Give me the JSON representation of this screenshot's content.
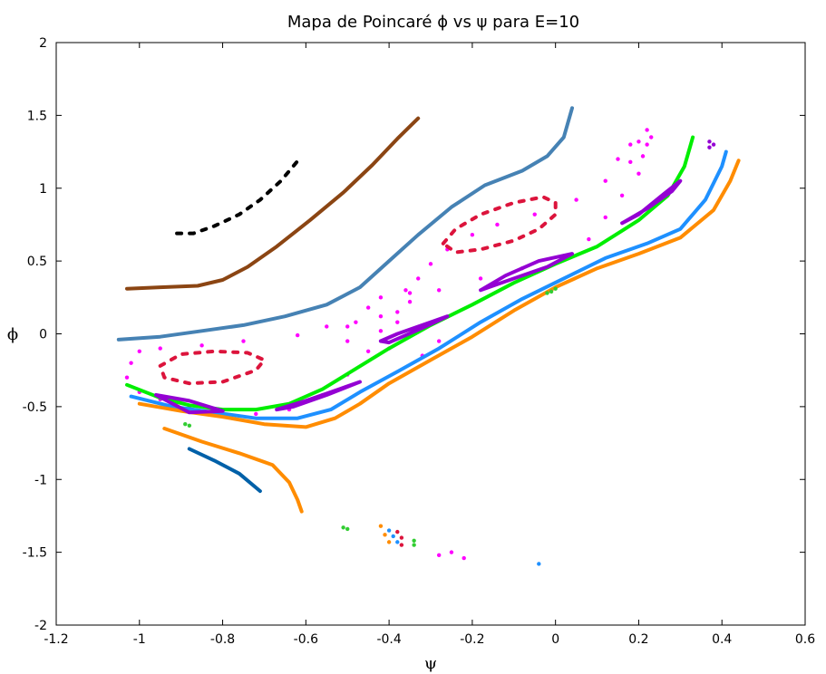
{
  "chart_data": {
    "type": "scatter",
    "title": "Mapa de Poincaré ϕ vs ψ para E=10",
    "xlabel": "ψ",
    "ylabel": "ϕ",
    "xlim": [
      -1.2,
      0.6
    ],
    "ylim": [
      -2,
      2
    ],
    "xticks": [
      -1.2,
      -1,
      -0.8,
      -0.6,
      -0.4,
      -0.2,
      0,
      0.2,
      0.4,
      0.6
    ],
    "xtick_labels": [
      "-1.2",
      "-1",
      "-0.8",
      "-0.6",
      "-0.4",
      "-0.2",
      "0",
      "0.2",
      "0.4",
      "0.6"
    ],
    "yticks": [
      -2,
      -1.5,
      -1,
      -0.5,
      0,
      0.5,
      1,
      1.5,
      2
    ],
    "ytick_labels": [
      "-2",
      "-1.5",
      "-1",
      "-0.5",
      "0",
      "0.5",
      "1",
      "1.5",
      "2"
    ],
    "grid": false,
    "legend": "none",
    "series": [
      {
        "color": "#000000",
        "kind": "dashed",
        "points": [
          [
            -0.91,
            0.69
          ],
          [
            -0.87,
            0.69
          ],
          [
            -0.82,
            0.74
          ],
          [
            -0.76,
            0.82
          ],
          [
            -0.71,
            0.92
          ],
          [
            -0.66,
            1.05
          ],
          [
            -0.61,
            1.22
          ]
        ]
      },
      {
        "color": "#8b4513",
        "kind": "line",
        "points": [
          [
            -1.03,
            0.31
          ],
          [
            -0.95,
            0.32
          ],
          [
            -0.86,
            0.33
          ],
          [
            -0.8,
            0.37
          ],
          [
            -0.74,
            0.46
          ],
          [
            -0.67,
            0.6
          ],
          [
            -0.59,
            0.78
          ],
          [
            -0.51,
            0.97
          ],
          [
            -0.44,
            1.16
          ],
          [
            -0.38,
            1.34
          ],
          [
            -0.33,
            1.48
          ]
        ]
      },
      {
        "color": "#4682b4",
        "kind": "line",
        "points": [
          [
            -1.05,
            -0.04
          ],
          [
            -0.95,
            -0.02
          ],
          [
            -0.85,
            0.02
          ],
          [
            -0.75,
            0.06
          ],
          [
            -0.65,
            0.12
          ],
          [
            -0.55,
            0.2
          ],
          [
            -0.47,
            0.32
          ],
          [
            -0.4,
            0.5
          ],
          [
            -0.33,
            0.68
          ],
          [
            -0.25,
            0.87
          ],
          [
            -0.17,
            1.02
          ],
          [
            -0.08,
            1.12
          ],
          [
            -0.02,
            1.22
          ],
          [
            0.02,
            1.35
          ],
          [
            0.04,
            1.55
          ]
        ]
      },
      {
        "color": "#ff00ff",
        "kind": "dots",
        "points": [
          [
            -1.02,
            -0.2
          ],
          [
            -1.03,
            -0.3
          ],
          [
            -1.0,
            -0.4
          ],
          [
            -0.95,
            -0.45
          ],
          [
            -0.88,
            -0.5
          ],
          [
            -0.8,
            -0.53
          ],
          [
            -0.72,
            -0.55
          ],
          [
            -0.64,
            -0.52
          ],
          [
            -0.56,
            -0.42
          ],
          [
            -0.5,
            -0.28
          ],
          [
            -0.45,
            -0.12
          ],
          [
            -0.42,
            0.02
          ],
          [
            -0.38,
            0.15
          ],
          [
            -0.35,
            0.28
          ],
          [
            -0.33,
            0.38
          ],
          [
            -0.3,
            0.48
          ],
          [
            -0.26,
            0.58
          ],
          [
            -0.2,
            0.68
          ],
          [
            -0.14,
            0.75
          ],
          [
            -0.05,
            0.82
          ],
          [
            0.05,
            0.92
          ],
          [
            0.12,
            1.05
          ],
          [
            0.18,
            1.18
          ],
          [
            0.22,
            1.3
          ],
          [
            0.23,
            1.35
          ],
          [
            -1.0,
            -0.12
          ],
          [
            -0.95,
            -0.1
          ],
          [
            -0.85,
            -0.08
          ],
          [
            -0.75,
            -0.05
          ],
          [
            -0.62,
            -0.01
          ],
          [
            -0.5,
            0.05
          ],
          [
            -0.42,
            0.12
          ],
          [
            -0.35,
            0.22
          ],
          [
            -0.28,
            0.3
          ],
          [
            -0.18,
            0.38
          ],
          [
            -0.08,
            0.45
          ],
          [
            0.02,
            0.52
          ],
          [
            0.08,
            0.65
          ],
          [
            0.12,
            0.8
          ],
          [
            0.16,
            0.95
          ],
          [
            0.2,
            1.1
          ],
          [
            0.21,
            1.22
          ],
          [
            -0.55,
            0.05
          ],
          [
            -0.5,
            -0.05
          ],
          [
            -0.48,
            0.08
          ],
          [
            -0.38,
            0.08
          ],
          [
            -0.35,
            0.0
          ],
          [
            -0.4,
            -0.1
          ],
          [
            -0.32,
            -0.15
          ],
          [
            -0.28,
            -0.05
          ],
          [
            -0.45,
            0.18
          ],
          [
            -0.42,
            0.25
          ],
          [
            -0.36,
            0.3
          ],
          [
            0.15,
            1.2
          ],
          [
            0.2,
            1.32
          ],
          [
            0.22,
            1.4
          ],
          [
            0.18,
            1.3
          ],
          [
            -0.28,
            -1.52
          ],
          [
            -0.25,
            -1.5
          ],
          [
            -0.22,
            -1.54
          ]
        ]
      },
      {
        "color": "#dc143c",
        "kind": "dashed-loop",
        "points": [
          [
            -0.95,
            -0.22
          ],
          [
            -0.9,
            -0.14
          ],
          [
            -0.82,
            -0.12
          ],
          [
            -0.74,
            -0.13
          ],
          [
            -0.7,
            -0.18
          ],
          [
            -0.72,
            -0.25
          ],
          [
            -0.8,
            -0.33
          ],
          [
            -0.88,
            -0.34
          ],
          [
            -0.94,
            -0.3
          ],
          [
            -0.95,
            -0.22
          ]
        ]
      },
      {
        "color": "#dc143c",
        "kind": "dashed-loop",
        "points": [
          [
            -0.27,
            0.62
          ],
          [
            -0.24,
            0.72
          ],
          [
            -0.18,
            0.82
          ],
          [
            -0.1,
            0.9
          ],
          [
            -0.03,
            0.94
          ],
          [
            0.0,
            0.9
          ],
          [
            0.0,
            0.82
          ],
          [
            -0.04,
            0.72
          ],
          [
            -0.1,
            0.64
          ],
          [
            -0.18,
            0.58
          ],
          [
            -0.24,
            0.56
          ],
          [
            -0.27,
            0.62
          ]
        ]
      },
      {
        "color": "#00ee00",
        "kind": "line",
        "points": [
          [
            -1.03,
            -0.35
          ],
          [
            -0.95,
            -0.44
          ],
          [
            -0.88,
            -0.49
          ],
          [
            -0.8,
            -0.52
          ],
          [
            -0.72,
            -0.52
          ],
          [
            -0.64,
            -0.48
          ],
          [
            -0.56,
            -0.38
          ],
          [
            -0.48,
            -0.24
          ],
          [
            -0.4,
            -0.1
          ],
          [
            -0.3,
            0.06
          ],
          [
            -0.2,
            0.2
          ],
          [
            -0.1,
            0.35
          ],
          [
            0.0,
            0.48
          ],
          [
            0.1,
            0.6
          ],
          [
            0.2,
            0.78
          ],
          [
            0.27,
            0.95
          ],
          [
            0.31,
            1.15
          ],
          [
            0.33,
            1.35
          ]
        ]
      },
      {
        "color": "#1e90ff",
        "kind": "line",
        "points": [
          [
            -1.02,
            -0.43
          ],
          [
            -0.92,
            -0.5
          ],
          [
            -0.82,
            -0.54
          ],
          [
            -0.72,
            -0.58
          ],
          [
            -0.62,
            -0.58
          ],
          [
            -0.54,
            -0.52
          ],
          [
            -0.47,
            -0.4
          ],
          [
            -0.38,
            -0.26
          ],
          [
            -0.28,
            -0.1
          ],
          [
            -0.18,
            0.08
          ],
          [
            -0.08,
            0.24
          ],
          [
            0.02,
            0.38
          ],
          [
            0.12,
            0.52
          ],
          [
            0.22,
            0.62
          ],
          [
            0.3,
            0.72
          ],
          [
            0.36,
            0.92
          ],
          [
            0.4,
            1.15
          ],
          [
            0.41,
            1.25
          ]
        ]
      },
      {
        "color": "#ff8c00",
        "kind": "line",
        "points": [
          [
            -1.0,
            -0.48
          ],
          [
            -0.9,
            -0.53
          ],
          [
            -0.8,
            -0.57
          ],
          [
            -0.7,
            -0.62
          ],
          [
            -0.6,
            -0.64
          ],
          [
            -0.53,
            -0.58
          ],
          [
            -0.47,
            -0.48
          ],
          [
            -0.4,
            -0.34
          ],
          [
            -0.3,
            -0.18
          ],
          [
            -0.2,
            -0.02
          ],
          [
            -0.1,
            0.16
          ],
          [
            0.0,
            0.32
          ],
          [
            0.1,
            0.45
          ],
          [
            0.2,
            0.55
          ],
          [
            0.3,
            0.66
          ],
          [
            0.38,
            0.85
          ],
          [
            0.42,
            1.05
          ],
          [
            0.44,
            1.19
          ]
        ]
      },
      {
        "color": "#ff8c00",
        "kind": "line",
        "points": [
          [
            -0.94,
            -0.65
          ],
          [
            -0.85,
            -0.74
          ],
          [
            -0.76,
            -0.82
          ],
          [
            -0.68,
            -0.9
          ],
          [
            -0.64,
            -1.02
          ],
          [
            -0.62,
            -1.14
          ],
          [
            -0.61,
            -1.22
          ]
        ]
      },
      {
        "color": "#0060a8",
        "kind": "line",
        "points": [
          [
            -0.88,
            -0.79
          ],
          [
            -0.82,
            -0.87
          ],
          [
            -0.76,
            -0.96
          ],
          [
            -0.71,
            -1.08
          ]
        ]
      },
      {
        "color": "#9400d3",
        "kind": "loop",
        "points": [
          [
            -0.96,
            -0.42
          ],
          [
            -0.88,
            -0.46
          ],
          [
            -0.8,
            -0.53
          ],
          [
            -0.88,
            -0.54
          ],
          [
            -0.96,
            -0.42
          ]
        ]
      },
      {
        "color": "#9400d3",
        "kind": "loop",
        "points": [
          [
            -0.67,
            -0.52
          ],
          [
            -0.6,
            -0.46
          ],
          [
            -0.52,
            -0.38
          ],
          [
            -0.47,
            -0.33
          ],
          [
            -0.55,
            -0.42
          ],
          [
            -0.63,
            -0.5
          ],
          [
            -0.67,
            -0.52
          ]
        ]
      },
      {
        "color": "#9400d3",
        "kind": "loop",
        "points": [
          [
            -0.42,
            -0.05
          ],
          [
            -0.38,
            0.0
          ],
          [
            -0.3,
            0.08
          ],
          [
            -0.26,
            0.12
          ],
          [
            -0.32,
            0.04
          ],
          [
            -0.4,
            -0.06
          ],
          [
            -0.42,
            -0.05
          ]
        ]
      },
      {
        "color": "#9400d3",
        "kind": "loop",
        "points": [
          [
            -0.18,
            0.3
          ],
          [
            -0.1,
            0.38
          ],
          [
            -0.02,
            0.46
          ],
          [
            0.04,
            0.55
          ],
          [
            -0.04,
            0.5
          ],
          [
            -0.12,
            0.4
          ],
          [
            -0.18,
            0.3
          ]
        ]
      },
      {
        "color": "#9400d3",
        "kind": "loop",
        "points": [
          [
            0.16,
            0.76
          ],
          [
            0.22,
            0.86
          ],
          [
            0.28,
            0.98
          ],
          [
            0.3,
            1.05
          ],
          [
            0.26,
            0.96
          ],
          [
            0.2,
            0.82
          ],
          [
            0.16,
            0.76
          ]
        ]
      },
      {
        "color": "#9400d3",
        "kind": "dots",
        "points": [
          [
            0.37,
            1.32
          ],
          [
            0.37,
            1.28
          ],
          [
            0.38,
            1.3
          ]
        ]
      },
      {
        "color": "#32cd32",
        "kind": "dots",
        "points": [
          [
            -0.01,
            0.29
          ],
          [
            0.0,
            0.31
          ],
          [
            -0.02,
            0.28
          ],
          [
            -0.89,
            -0.62
          ],
          [
            -0.88,
            -0.63
          ],
          [
            -0.51,
            -1.33
          ],
          [
            -0.5,
            -1.34
          ],
          [
            -0.34,
            -1.42
          ],
          [
            -0.34,
            -1.45
          ]
        ]
      },
      {
        "color": "#ff8c00",
        "kind": "dots",
        "points": [
          [
            -0.42,
            -1.32
          ],
          [
            -0.41,
            -1.38
          ],
          [
            -0.4,
            -1.43
          ]
        ]
      },
      {
        "color": "#1e90ff",
        "kind": "dots",
        "points": [
          [
            -0.4,
            -1.35
          ],
          [
            -0.39,
            -1.39
          ],
          [
            -0.38,
            -1.43
          ],
          [
            -0.04,
            -1.58
          ]
        ]
      },
      {
        "color": "#dc143c",
        "kind": "dots",
        "points": [
          [
            -0.38,
            -1.36
          ],
          [
            -0.37,
            -1.4
          ],
          [
            -0.37,
            -1.45
          ]
        ]
      }
    ]
  }
}
